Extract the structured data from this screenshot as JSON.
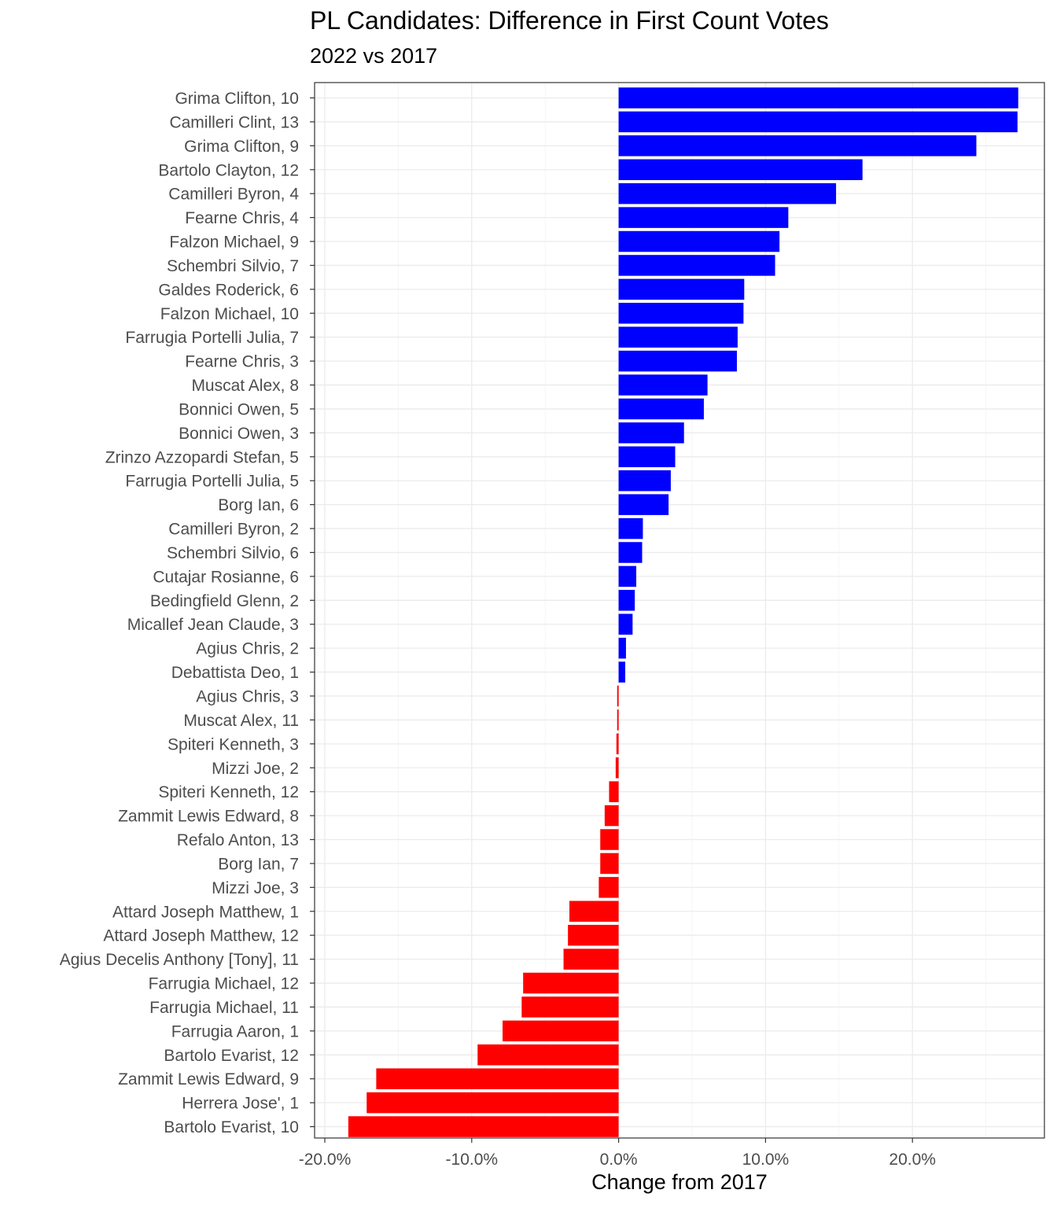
{
  "chart_data": {
    "type": "bar",
    "orientation": "horizontal",
    "title": "PL Candidates: Difference in First Count Votes",
    "subtitle": "2022 vs 2017",
    "xlabel": "Change from 2017",
    "ylabel": "",
    "xlim": [
      -0.2,
      0.27
    ],
    "xticks": [
      -0.2,
      -0.1,
      0.0,
      0.1,
      0.2
    ],
    "xtick_labels": [
      "-20.0%",
      "-10.0%",
      "0.0%",
      "10.0%",
      "20.0%"
    ],
    "grid": true,
    "legend": "none",
    "colors": {
      "positive": "#0000ff",
      "negative": "#ff0000"
    },
    "categories": [
      "Grima Clifton, 10",
      "Camilleri Clint, 13",
      "Grima Clifton, 9",
      "Bartolo Clayton, 12",
      "Camilleri Byron, 4",
      "Fearne Chris, 4",
      "Falzon Michael, 9",
      "Schembri Silvio, 7",
      "Galdes Roderick, 6",
      "Falzon Michael, 10",
      "Farrugia Portelli Julia, 7",
      "Fearne Chris, 3",
      "Muscat Alex, 8",
      "Bonnici Owen, 5",
      "Bonnici Owen, 3",
      "Zrinzo Azzopardi Stefan, 5",
      "Farrugia Portelli Julia, 5",
      "Borg Ian, 6",
      "Camilleri Byron, 2",
      "Schembri Silvio, 6",
      "Cutajar Rosianne, 6",
      "Bedingfield Glenn, 2",
      "Micallef Jean Claude, 3",
      "Agius Chris, 2",
      "Debattista Deo, 1",
      "Agius Chris, 3",
      "Muscat Alex, 11",
      "Spiteri Kenneth, 3",
      "Mizzi Joe, 2",
      "Spiteri Kenneth, 12",
      "Zammit Lewis Edward, 8",
      "Refalo Anton, 13",
      "Borg Ian, 7",
      "Mizzi Joe, 3",
      "Attard Joseph Matthew, 1",
      "Attard Joseph Matthew, 12",
      "Agius Decelis Anthony [Tony], 11",
      "Farrugia Michael, 12",
      "Farrugia Michael, 11",
      "Farrugia Aaron, 1",
      "Bartolo Evarist, 12",
      "Zammit Lewis Edward, 9",
      "Herrera Jose', 1",
      "Bartolo Evarist, 10"
    ],
    "values": [
      0.272,
      0.2715,
      0.2435,
      0.166,
      0.148,
      0.1155,
      0.1095,
      0.1065,
      0.0855,
      0.085,
      0.081,
      0.0805,
      0.0605,
      0.058,
      0.0445,
      0.0385,
      0.0355,
      0.034,
      0.0165,
      0.016,
      0.012,
      0.011,
      0.0095,
      0.005,
      0.0045,
      -0.001,
      -0.001,
      -0.0015,
      -0.002,
      -0.0065,
      -0.0095,
      -0.0125,
      -0.0125,
      -0.0135,
      -0.0335,
      -0.0345,
      -0.0375,
      -0.065,
      -0.066,
      -0.079,
      -0.096,
      -0.165,
      -0.1715,
      -0.184
    ]
  }
}
